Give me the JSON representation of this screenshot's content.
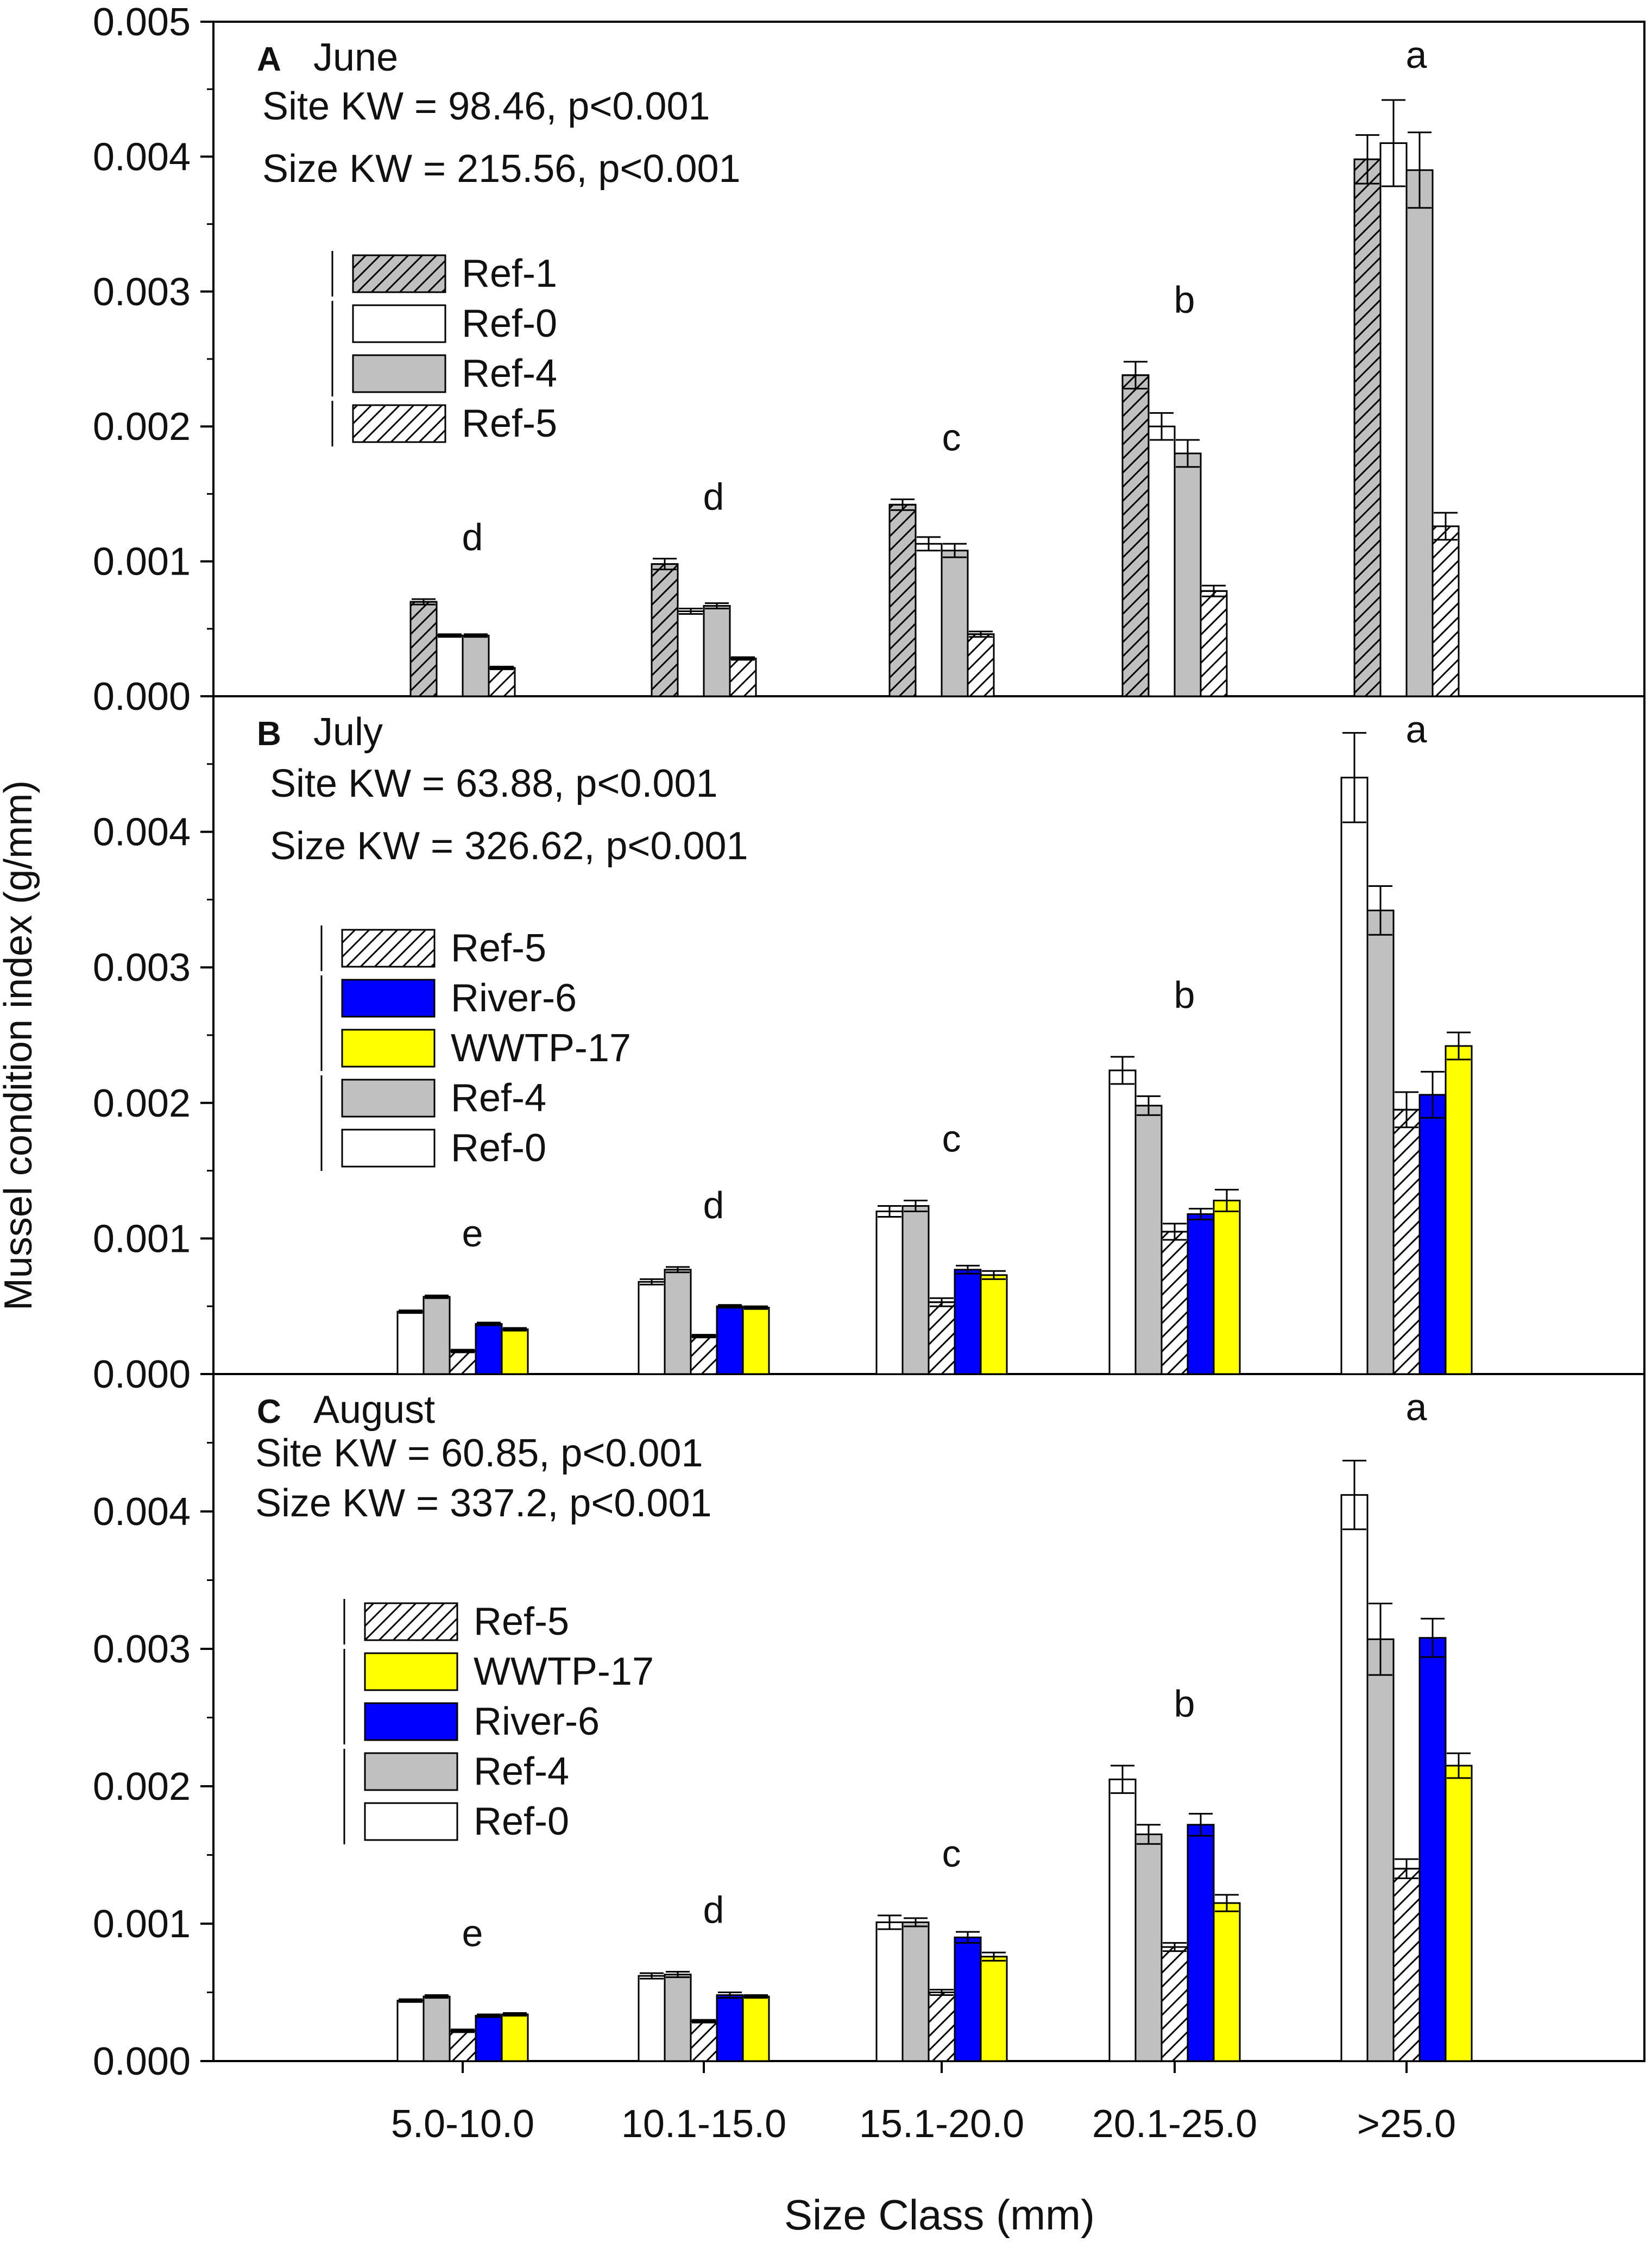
{
  "figure": {
    "ylabel": "Mussel condition index (g/mm)",
    "xlabel": "Size Class (mm)",
    "categories": [
      "5.0-10.0",
      "10.1-15.0",
      "15.1-20.0",
      "20.1-25.0",
      ">25.0"
    ],
    "ytick_labels": [
      "0.000",
      "0.001",
      "0.002",
      "0.003",
      "0.004",
      "0.005"
    ]
  },
  "colors": {
    "Ref-1": "#c0c0c0",
    "Ref-0": "#ffffff",
    "Ref-4": "#c0c0c0",
    "Ref-5": "#ffffff",
    "River-6": "#0000ff",
    "WWTP-17": "#ffff00"
  },
  "chart_data": [
    {
      "type": "bar",
      "panel": "A",
      "month": "June",
      "stat_lines": [
        "Site KW = 98.46, p<0.001",
        "Size KW = 215.56, p<0.001"
      ],
      "ylim": [
        0,
        0.005
      ],
      "categories": [
        "5.0-10.0",
        "10.1-15.0",
        "15.1-20.0",
        "20.1-25.0",
        ">25.0"
      ],
      "group_letters": [
        "d",
        "d",
        "c",
        "b",
        "a"
      ],
      "series": [
        {
          "name": "Ref-1",
          "values": [
            0.0007,
            0.00098,
            0.00142,
            0.00238,
            0.00398
          ],
          "errors": [
            2e-05,
            4e-05,
            4e-05,
            0.0001,
            0.00018
          ]
        },
        {
          "name": "Ref-0",
          "values": [
            0.00045,
            0.00063,
            0.00113,
            0.002,
            0.0041
          ],
          "errors": [
            1e-05,
            2e-05,
            5e-05,
            0.0001,
            0.00032
          ]
        },
        {
          "name": "Ref-4",
          "values": [
            0.00045,
            0.00067,
            0.00108,
            0.0018,
            0.0039
          ],
          "errors": [
            1e-05,
            2e-05,
            5e-05,
            0.0001,
            0.00028
          ]
        },
        {
          "name": "Ref-5",
          "values": [
            0.00021,
            0.00028,
            0.00046,
            0.00078,
            0.00126
          ],
          "errors": [
            1e-05,
            1e-05,
            2e-05,
            4e-05,
            0.0001
          ]
        }
      ],
      "legend": [
        "Ref-1",
        "Ref-0",
        "Ref-4",
        "Ref-5"
      ]
    },
    {
      "type": "bar",
      "panel": "B",
      "month": "July",
      "stat_lines": [
        "Site KW = 63.88, p<0.001",
        "Size KW = 326.62, p<0.001"
      ],
      "ylim": [
        0,
        0.005
      ],
      "categories": [
        "5.0-10.0",
        "10.1-15.0",
        "15.1-20.0",
        "20.1-25.0",
        ">25.0"
      ],
      "group_letters": [
        "e",
        "d",
        "c",
        "b",
        "a"
      ],
      "series": [
        {
          "name": "Ref-0",
          "values": [
            0.00046,
            0.00068,
            0.0012,
            0.00224,
            0.0044
          ],
          "errors": [
            1e-05,
            2e-05,
            4e-05,
            0.0001,
            0.00033
          ]
        },
        {
          "name": "Ref-4",
          "values": [
            0.00057,
            0.00077,
            0.00124,
            0.00198,
            0.00342
          ],
          "errors": [
            1e-05,
            2e-05,
            4e-05,
            7e-05,
            0.00018
          ]
        },
        {
          "name": "Ref-5",
          "values": [
            0.00017,
            0.00028,
            0.00053,
            0.00105,
            0.00195
          ],
          "errors": [
            1e-05,
            1e-05,
            3e-05,
            6e-05,
            0.00013
          ]
        },
        {
          "name": "River-6",
          "values": [
            0.00037,
            0.0005,
            0.00077,
            0.00118,
            0.00206
          ],
          "errors": [
            1e-05,
            1e-05,
            3e-05,
            4e-05,
            0.00017
          ]
        },
        {
          "name": "WWTP-17",
          "values": [
            0.00033,
            0.00049,
            0.00073,
            0.00128,
            0.00242
          ],
          "errors": [
            1e-05,
            1e-05,
            3e-05,
            8e-05,
            0.0001
          ]
        }
      ],
      "legend": [
        "Ref-5",
        "River-6",
        "WWTP-17",
        "Ref-4",
        "Ref-0"
      ]
    },
    {
      "type": "bar",
      "panel": "C",
      "month": "August",
      "stat_lines": [
        "Site KW = 60.85, p<0.001",
        "Size KW = 337.2, p<0.001"
      ],
      "ylim": [
        0,
        0.005
      ],
      "categories": [
        "5.0-10.0",
        "10.1-15.0",
        "15.1-20.0",
        "20.1-25.0",
        ">25.0"
      ],
      "group_letters": [
        "e",
        "d",
        "c",
        "b",
        "a"
      ],
      "series": [
        {
          "name": "Ref-0",
          "values": [
            0.00044,
            0.00062,
            0.00101,
            0.00205,
            0.00412
          ],
          "errors": [
            1e-05,
            2e-05,
            5e-05,
            0.0001,
            0.00025
          ]
        },
        {
          "name": "Ref-4",
          "values": [
            0.00047,
            0.00063,
            0.00101,
            0.00165,
            0.00307
          ],
          "errors": [
            1e-05,
            2e-05,
            3e-05,
            7e-05,
            0.00026
          ]
        },
        {
          "name": "Ref-5",
          "values": [
            0.00022,
            0.00029,
            0.0005,
            0.00083,
            0.0014
          ],
          "errors": [
            1e-05,
            1e-05,
            2e-05,
            3e-05,
            7e-05
          ]
        },
        {
          "name": "River-6",
          "values": [
            0.00033,
            0.00048,
            0.0009,
            0.00172,
            0.00308
          ],
          "errors": [
            1e-05,
            2e-05,
            4e-05,
            8e-05,
            0.00014
          ]
        },
        {
          "name": "WWTP-17",
          "values": [
            0.00034,
            0.00047,
            0.00076,
            0.00115,
            0.00215
          ],
          "errors": [
            1e-05,
            1e-05,
            3e-05,
            6e-05,
            9e-05
          ]
        }
      ],
      "legend": [
        "Ref-5",
        "WWTP-17",
        "River-6",
        "Ref-4",
        "Ref-0"
      ]
    }
  ]
}
